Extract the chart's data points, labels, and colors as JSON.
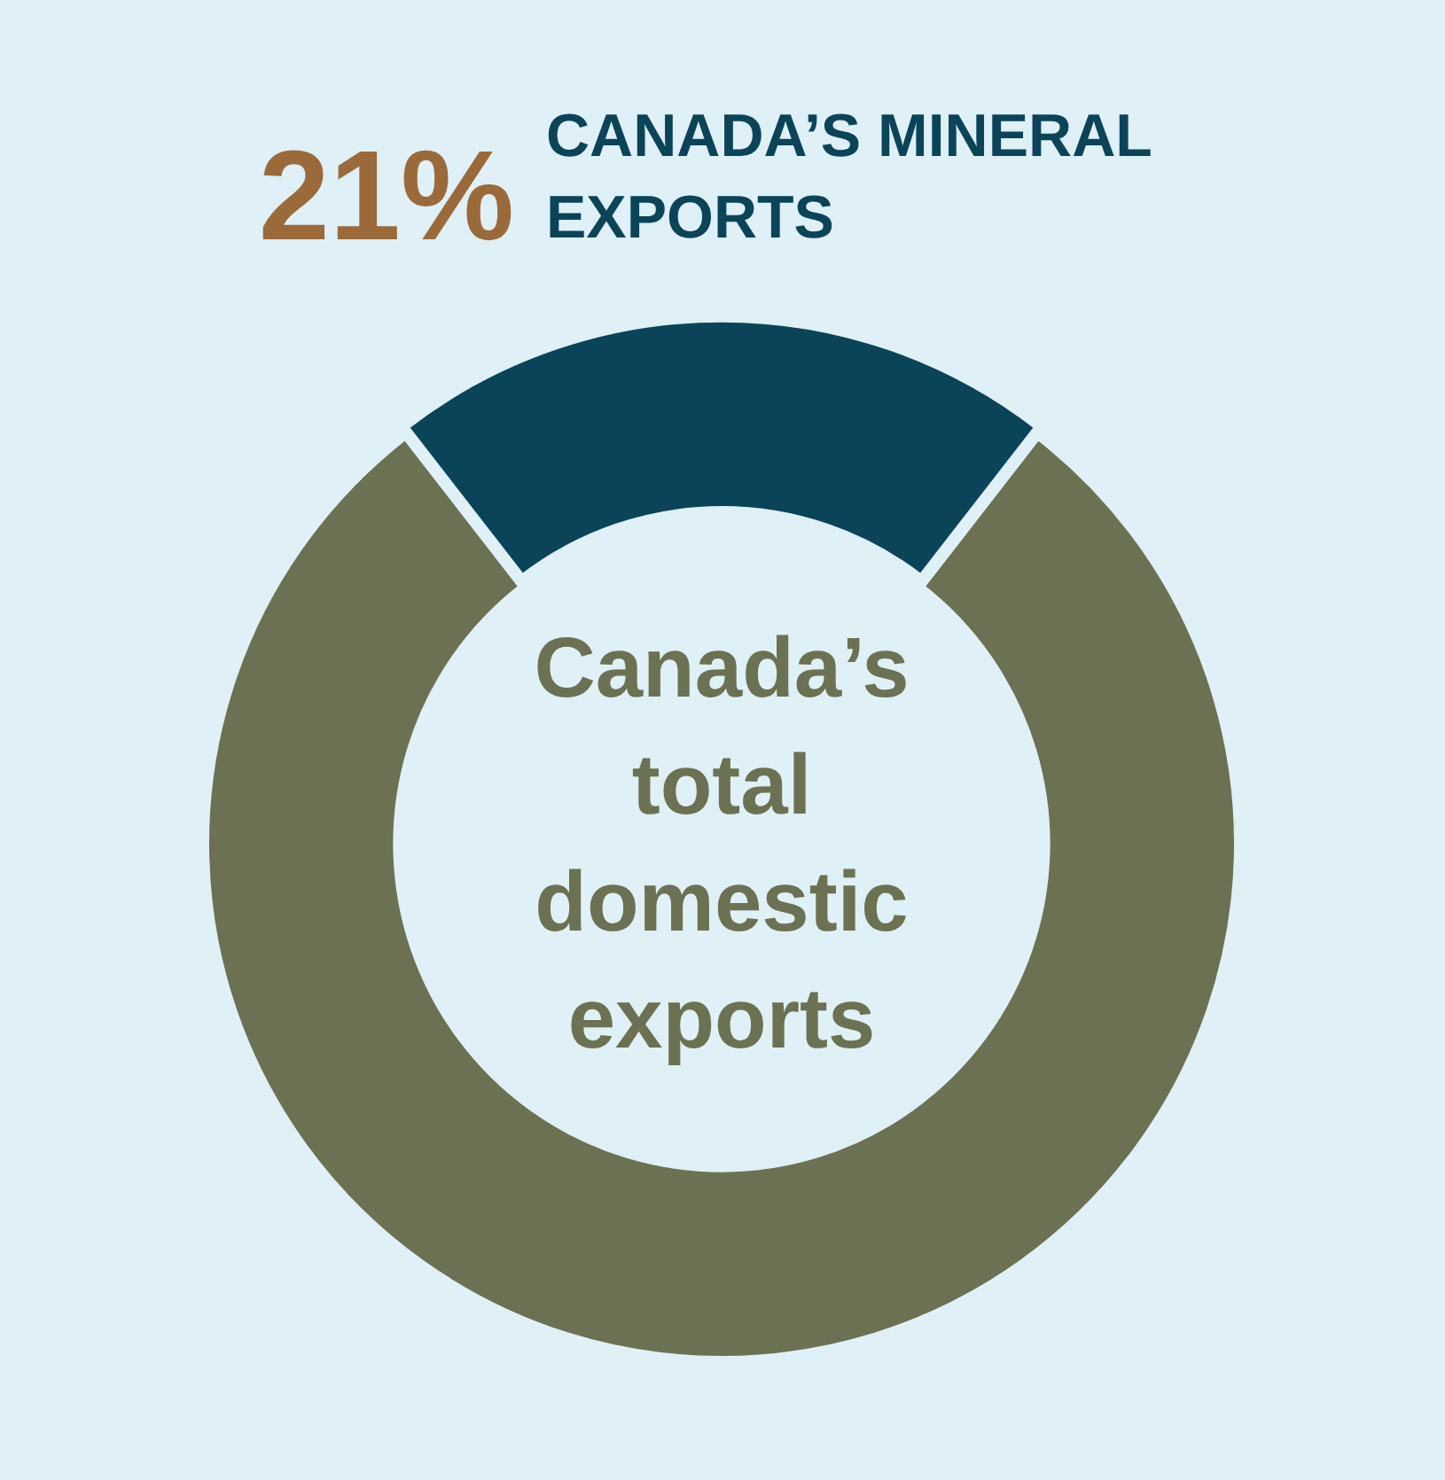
{
  "chart_data": {
    "type": "donut",
    "categories": [
      "CANADA’S MINERAL EXPORTS",
      "Canada’s total domestic exports"
    ],
    "values": [
      21,
      79
    ],
    "colors": [
      "#0b4459",
      "#6b7152"
    ],
    "value_labels": [
      "21%",
      null
    ],
    "legend": false
  }
}
